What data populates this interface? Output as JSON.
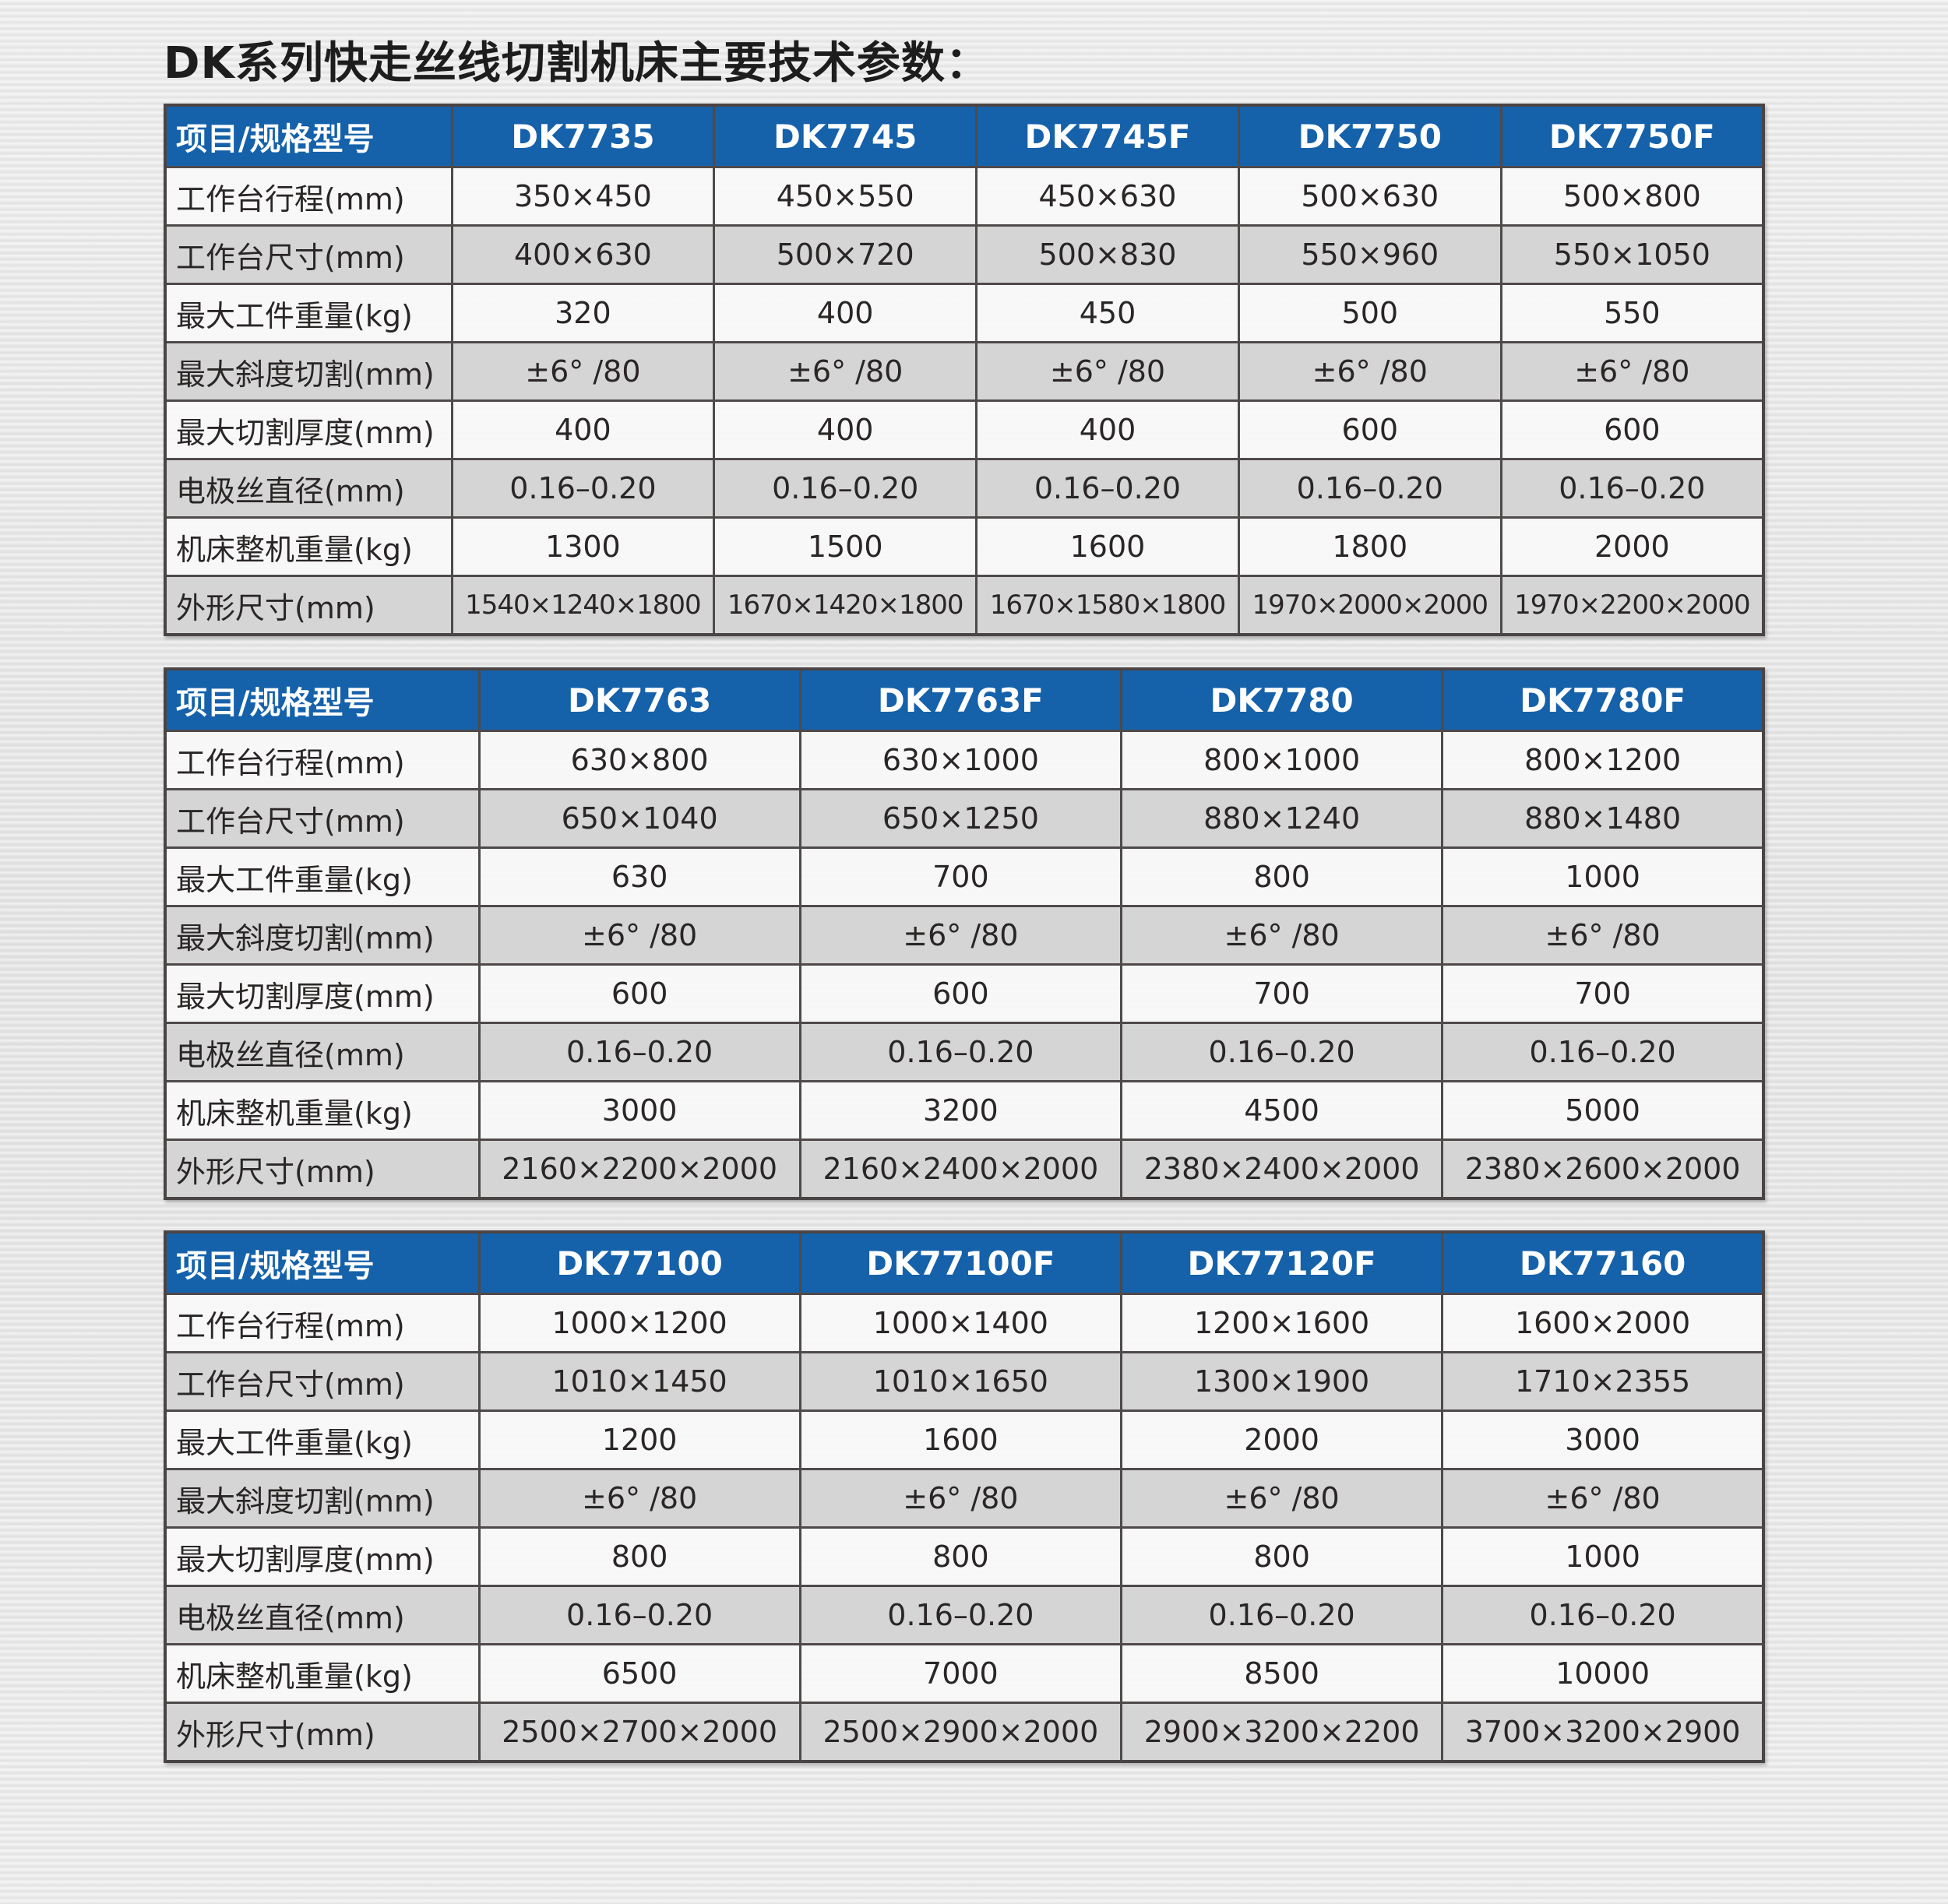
{
  "title": "DK系列快走丝线切割机床主要技术参数：",
  "colors": {
    "header_blue": "#1561aa",
    "row_gray": "#d5d5d5",
    "row_light": "#f8f8f8"
  },
  "row_labels": [
    "工作台行程(mm)",
    "工作台尺寸(mm)",
    "最大工件重量(kg)",
    "最大斜度切割(mm)",
    "最大切割厚度(mm)",
    "电极丝直径(mm)",
    "机床整机重量(kg)",
    "外形尺寸(mm)"
  ],
  "tables": [
    {
      "header_label": "项目/规格型号",
      "models": [
        "DK7735",
        "DK7745",
        "DK7745F",
        "DK7750",
        "DK7750F"
      ],
      "rows": [
        [
          "350×450",
          "450×550",
          "450×630",
          "500×630",
          "500×800"
        ],
        [
          "400×630",
          "500×720",
          "500×830",
          "550×960",
          "550×1050"
        ],
        [
          "320",
          "400",
          "450",
          "500",
          "550"
        ],
        [
          "±6° /80",
          "±6° /80",
          "±6° /80",
          "±6° /80",
          "±6° /80"
        ],
        [
          "400",
          "400",
          "400",
          "600",
          "600"
        ],
        [
          "0.16–0.20",
          "0.16–0.20",
          "0.16–0.20",
          "0.16–0.20",
          "0.16–0.20"
        ],
        [
          "1300",
          "1500",
          "1600",
          "1800",
          "2000"
        ],
        [
          "1540×1240×1800",
          "1670×1420×1800",
          "1670×1580×1800",
          "1970×2000×2000",
          "1970×2200×2000"
        ]
      ]
    },
    {
      "header_label": "项目/规格型号",
      "models": [
        "DK7763",
        "DK7763F",
        "DK7780",
        "DK7780F"
      ],
      "rows": [
        [
          "630×800",
          "630×1000",
          "800×1000",
          "800×1200"
        ],
        [
          "650×1040",
          "650×1250",
          "880×1240",
          "880×1480"
        ],
        [
          "630",
          "700",
          "800",
          "1000"
        ],
        [
          "±6° /80",
          "±6° /80",
          "±6° /80",
          "±6° /80"
        ],
        [
          "600",
          "600",
          "700",
          "700"
        ],
        [
          "0.16–0.20",
          "0.16–0.20",
          "0.16–0.20",
          "0.16–0.20"
        ],
        [
          "3000",
          "3200",
          "4500",
          "5000"
        ],
        [
          "2160×2200×2000",
          "2160×2400×2000",
          "2380×2400×2000",
          "2380×2600×2000"
        ]
      ]
    },
    {
      "header_label": "项目/规格型号",
      "models": [
        "DK77100",
        "DK77100F",
        "DK77120F",
        "DK77160"
      ],
      "rows": [
        [
          "1000×1200",
          "1000×1400",
          "1200×1600",
          "1600×2000"
        ],
        [
          "1010×1450",
          "1010×1650",
          "1300×1900",
          "1710×2355"
        ],
        [
          "1200",
          "1600",
          "2000",
          "3000"
        ],
        [
          "±6° /80",
          "±6° /80",
          "±6° /80",
          "±6° /80"
        ],
        [
          "800",
          "800",
          "800",
          "1000"
        ],
        [
          "0.16–0.20",
          "0.16–0.20",
          "0.16–0.20",
          "0.16–0.20"
        ],
        [
          "6500",
          "7000",
          "8500",
          "10000"
        ],
        [
          "2500×2700×2000",
          "2500×2900×2000",
          "2900×3200×2200",
          "3700×3200×2900"
        ]
      ]
    }
  ]
}
